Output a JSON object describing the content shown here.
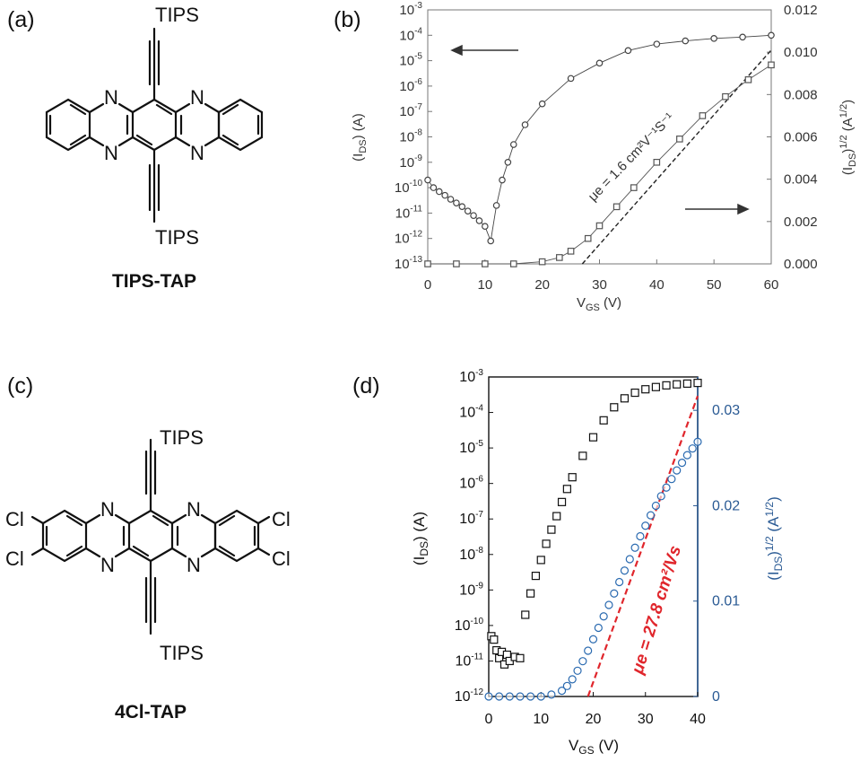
{
  "panels": {
    "a": {
      "label": "(a)",
      "molecule": "TIPS-TAP",
      "substituent_top": "TIPS",
      "substituent_bottom": "TIPS",
      "n_atom": "N"
    },
    "b": {
      "label": "(b)"
    },
    "c": {
      "label": "(c)",
      "molecule": "4Cl-TAP",
      "substituent_top": "TIPS",
      "substituent_bottom": "TIPS",
      "n_atom": "N",
      "cl_atom": "Cl"
    },
    "d": {
      "label": "(d)"
    }
  },
  "chart_data": [
    {
      "panel": "(b)",
      "type": "scatter",
      "xlabel": "V_GS (V)",
      "ylabel_left": "(I_DS) (A)",
      "ylabel_right": "(I_DS)^1/2 (A^1/2)",
      "x_ticks": [
        "0",
        "10",
        "20",
        "30",
        "40",
        "50",
        "60"
      ],
      "y_left_ticks": [
        "10-13",
        "10-12",
        "10-11",
        "10-10",
        "10-9",
        "10-8",
        "10-7",
        "10-6",
        "10-5",
        "10-4",
        "10-3"
      ],
      "y_right_ticks": [
        "0.000",
        "0.002",
        "0.004",
        "0.006",
        "0.008",
        "0.010",
        "0.012"
      ],
      "xlim": [
        0,
        60
      ],
      "ylim_left_log10": [
        -13,
        -3
      ],
      "ylim_right": [
        0,
        0.012
      ],
      "annotation": "μe = 1.6 cm²V⁻¹S⁻¹",
      "series": [
        {
          "marker": "circle",
          "axis": "left",
          "x": [
            0,
            1,
            2,
            3,
            4,
            5,
            6,
            7,
            8,
            9,
            10,
            11,
            12,
            13,
            14,
            15,
            17,
            20,
            25,
            30,
            35,
            40,
            45,
            50,
            55,
            60
          ],
          "y": [
            2e-10,
            1e-10,
            7e-11,
            5e-11,
            3.5e-11,
            2.5e-11,
            1.8e-11,
            1.2e-11,
            8e-12,
            5e-12,
            3e-12,
            8e-13,
            2e-11,
            2e-10,
            1e-09,
            5e-09,
            3e-08,
            2e-07,
            2e-06,
            8e-06,
            2.5e-05,
            4.5e-05,
            6e-05,
            7.5e-05,
            8.5e-05,
            0.0001
          ]
        },
        {
          "marker": "square",
          "axis": "right",
          "x": [
            0,
            5,
            10,
            15,
            20,
            23,
            25,
            28,
            30,
            33,
            36,
            40,
            44,
            48,
            52,
            56,
            60
          ],
          "y": [
            0.0,
            0.0,
            0.0,
            0.0,
            0.0001,
            0.0003,
            0.0006,
            0.0012,
            0.0018,
            0.0027,
            0.0036,
            0.0048,
            0.0059,
            0.007,
            0.0079,
            0.0087,
            0.0094
          ]
        }
      ],
      "fit_line": {
        "x": [
          27,
          60
        ],
        "y": [
          0.0,
          0.0101
        ]
      }
    },
    {
      "panel": "(d)",
      "type": "scatter",
      "xlabel": "V_GS (V)",
      "ylabel_left": "(I_DS) (A)",
      "ylabel_right": "(I_DS)^1/2 (A^1/2)",
      "x_ticks": [
        "0",
        "10",
        "20",
        "30",
        "40"
      ],
      "y_left_ticks": [
        "10-12",
        "10-11",
        "10-10",
        "10-9",
        "10-8",
        "10-7",
        "10-6",
        "10-5",
        "10-4",
        "10-3"
      ],
      "y_right_ticks": [
        "0",
        "0.01",
        "0.02",
        "0.03"
      ],
      "xlim": [
        0,
        40
      ],
      "ylim_left_log10": [
        -12,
        -3
      ],
      "ylim_right": [
        0,
        0.0335
      ],
      "annotation": "μe = 27.8 cm²/Vs",
      "colors": {
        "left_series": "#111111",
        "right_series": "#2a6ab0",
        "right_axis": "#2a5a94",
        "fit_line": "#e0262c",
        "annotation": "#e0262c"
      },
      "series": [
        {
          "marker": "square",
          "axis": "left",
          "x": [
            0.5,
            1,
            1.5,
            2,
            2.5,
            3,
            3.5,
            4,
            5,
            6,
            7,
            8,
            9,
            10,
            11,
            12,
            13,
            14,
            15,
            16,
            18,
            20,
            22,
            24,
            26,
            28,
            30,
            32,
            34,
            36,
            38,
            40
          ],
          "y": [
            5e-11,
            4e-11,
            2e-11,
            1.2e-11,
            1.8e-11,
            8e-12,
            1.5e-11,
            1e-11,
            1.3e-11,
            1.2e-11,
            2e-10,
            8e-10,
            2.5e-09,
            7e-09,
            2e-08,
            5e-08,
            1.2e-07,
            3e-07,
            7e-07,
            1.5e-06,
            6e-06,
            2e-05,
            6e-05,
            0.00014,
            0.00025,
            0.00036,
            0.00045,
            0.00052,
            0.00058,
            0.00062,
            0.00065,
            0.00068
          ]
        },
        {
          "marker": "circle",
          "axis": "right",
          "x": [
            0,
            2,
            4,
            6,
            8,
            10,
            12,
            14,
            15,
            16,
            17,
            18,
            19,
            20,
            21,
            22,
            23,
            24,
            25,
            26,
            27,
            28,
            29,
            30,
            31,
            32,
            33,
            34,
            35,
            36,
            37,
            38,
            39,
            40
          ],
          "y": [
            0.0,
            0.0,
            0.0,
            0.0,
            0.0,
            0.0,
            0.0002,
            0.0006,
            0.0011,
            0.0018,
            0.0027,
            0.0037,
            0.0048,
            0.006,
            0.0072,
            0.0084,
            0.0096,
            0.0108,
            0.012,
            0.0132,
            0.0144,
            0.0156,
            0.0168,
            0.0179,
            0.019,
            0.02,
            0.021,
            0.0219,
            0.0228,
            0.0237,
            0.0245,
            0.0253,
            0.026,
            0.0267
          ]
        }
      ],
      "fit_line": {
        "x": [
          19,
          40
        ],
        "y": [
          0.0,
          0.0315
        ]
      }
    }
  ]
}
